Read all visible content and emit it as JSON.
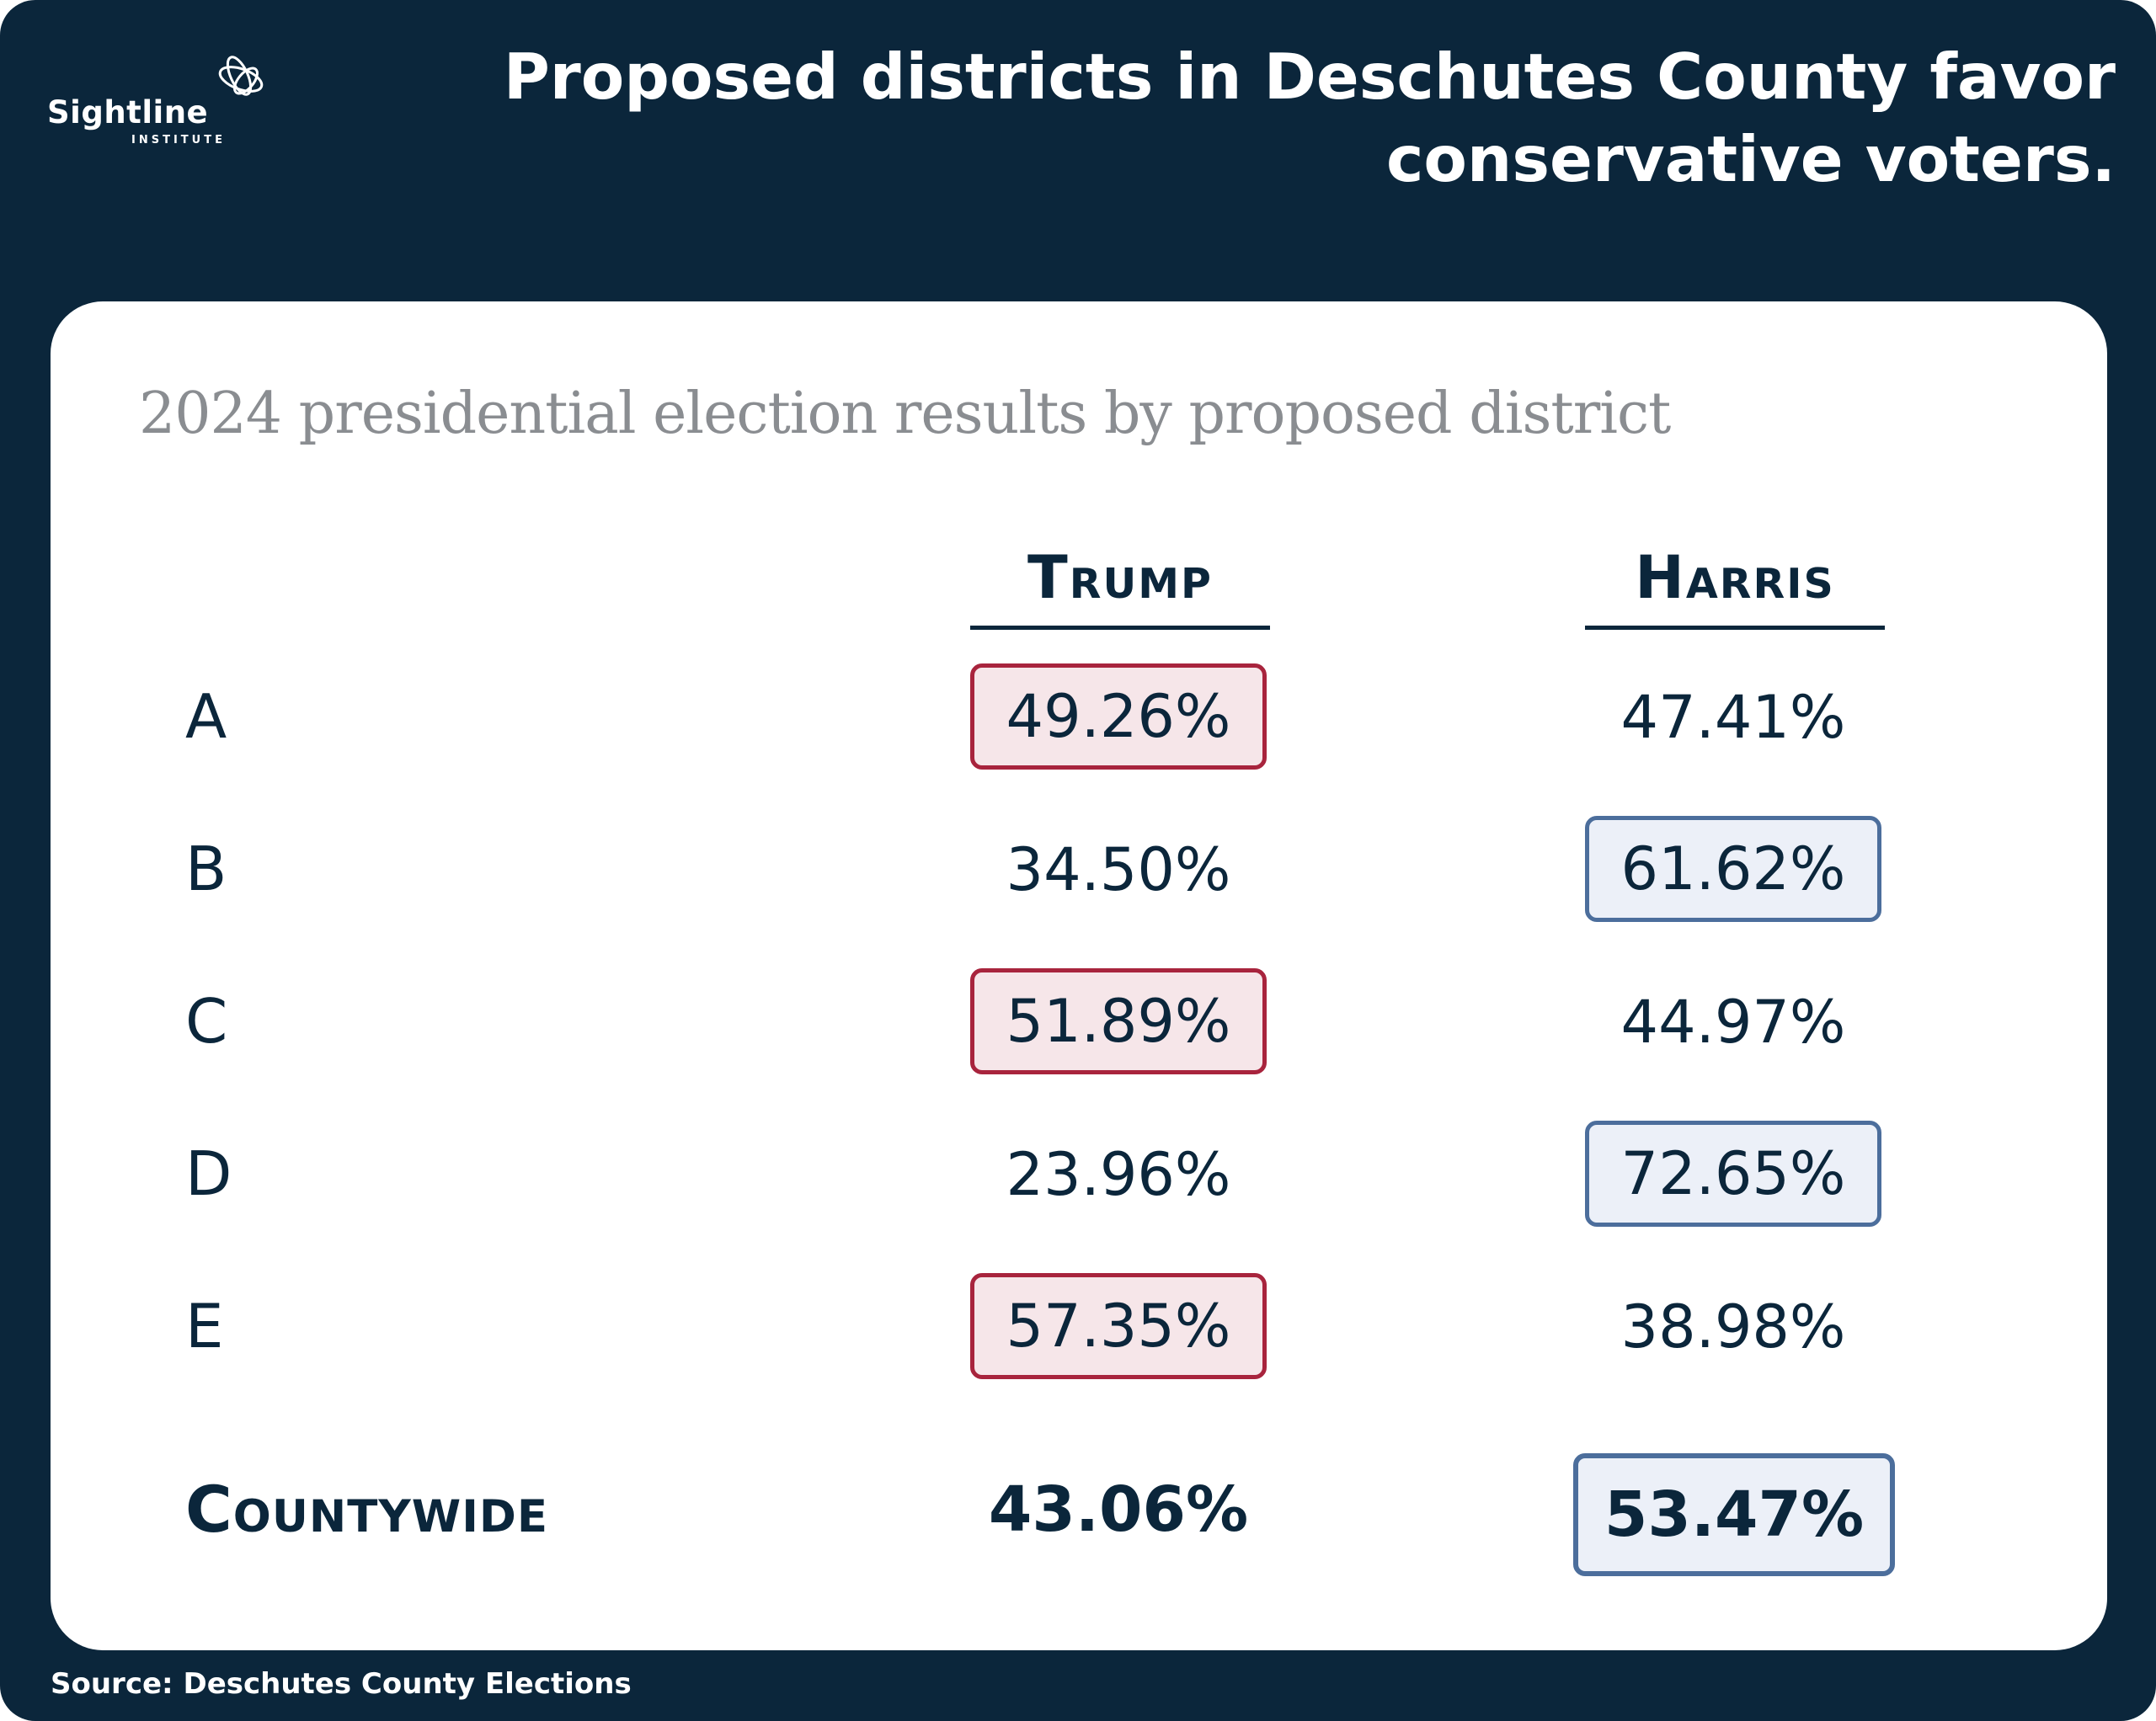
{
  "brand": {
    "name": "Sightline",
    "sub": "INSTITUTE"
  },
  "headline": "Proposed districts in Deschutes County favor conservative voters.",
  "colors": {
    "background": "#0b263b",
    "republican": "#a8243d",
    "democrat": "#4c6e9c",
    "republican_fill": "#f6e6e9",
    "democrat_fill": "#ecf0f8"
  },
  "chart_data": {
    "type": "table",
    "title": "2024 presidential election results by proposed district",
    "columns": [
      "Trump",
      "Harris"
    ],
    "rows": [
      {
        "label": "A",
        "trump": "49.26%",
        "harris": "47.41%",
        "highlight": "trump"
      },
      {
        "label": "B",
        "trump": "34.50%",
        "harris": "61.62%",
        "highlight": "harris"
      },
      {
        "label": "C",
        "trump": "51.89%",
        "harris": "44.97%",
        "highlight": "trump"
      },
      {
        "label": "D",
        "trump": "23.96%",
        "harris": "72.65%",
        "highlight": "harris"
      },
      {
        "label": "E",
        "trump": "57.35%",
        "harris": "38.98%",
        "highlight": "trump"
      }
    ],
    "total": {
      "label": "Countywide",
      "trump": "43.06%",
      "harris": "53.47%",
      "highlight": "harris"
    }
  },
  "source": "Source: Deschutes County Elections"
}
